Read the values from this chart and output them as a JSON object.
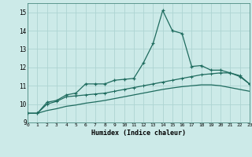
{
  "x_values": [
    0,
    1,
    2,
    3,
    4,
    5,
    6,
    7,
    8,
    9,
    10,
    11,
    12,
    13,
    14,
    15,
    16,
    17,
    18,
    19,
    20,
    21,
    22,
    23
  ],
  "line1_y": [
    9.5,
    9.5,
    10.1,
    10.2,
    10.5,
    10.6,
    11.1,
    11.1,
    11.1,
    11.3,
    11.35,
    11.4,
    12.25,
    13.3,
    15.1,
    14.0,
    13.85,
    12.05,
    12.1,
    11.85,
    11.85,
    11.7,
    11.5,
    11.1
  ],
  "line2_y": [
    9.5,
    9.5,
    10.0,
    10.15,
    10.4,
    10.45,
    10.5,
    10.55,
    10.6,
    10.7,
    10.8,
    10.9,
    11.0,
    11.1,
    11.2,
    11.3,
    11.4,
    11.5,
    11.6,
    11.65,
    11.7,
    11.7,
    11.55,
    11.1
  ],
  "line3_y": [
    9.5,
    9.5,
    9.65,
    9.75,
    9.88,
    9.95,
    10.05,
    10.12,
    10.2,
    10.3,
    10.4,
    10.5,
    10.6,
    10.7,
    10.8,
    10.88,
    10.95,
    11.0,
    11.05,
    11.05,
    11.0,
    10.9,
    10.8,
    10.7
  ],
  "line_color": "#1e6b5e",
  "bg_color": "#cceae8",
  "grid_color": "#aed4d2",
  "xlabel": "Humidex (Indice chaleur)",
  "xlim": [
    0,
    23
  ],
  "ylim": [
    9.0,
    15.5
  ],
  "yticks": [
    9,
    10,
    11,
    12,
    13,
    14,
    15
  ],
  "xtick_labels": [
    "0",
    "1",
    "2",
    "3",
    "4",
    "5",
    "6",
    "7",
    "8",
    "9",
    "10",
    "11",
    "12",
    "13",
    "14",
    "15",
    "16",
    "17",
    "18",
    "19",
    "20",
    "21",
    "22",
    "23"
  ]
}
